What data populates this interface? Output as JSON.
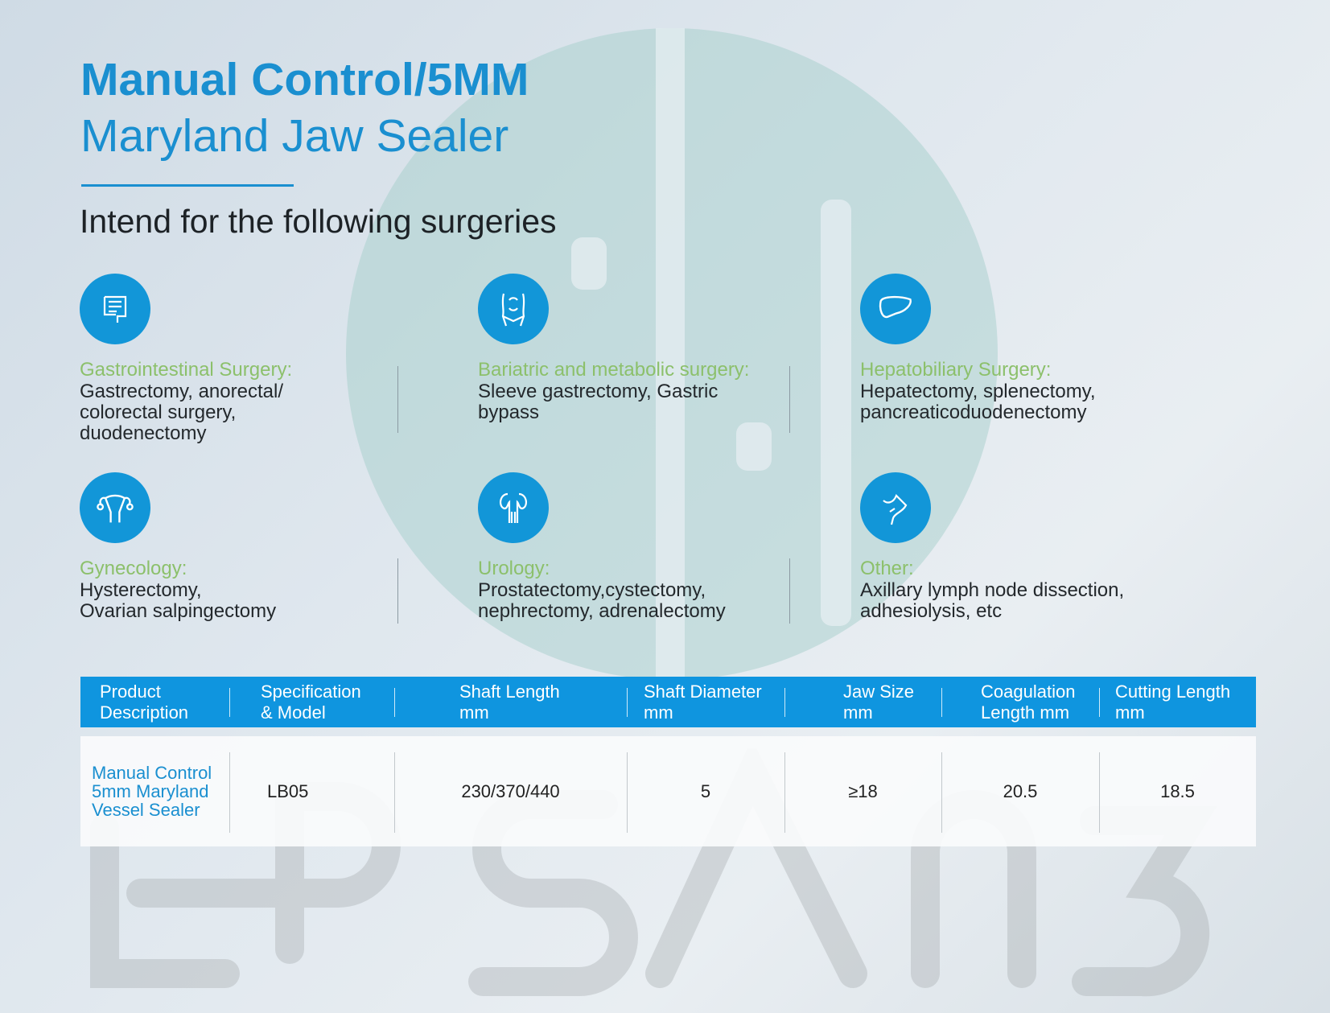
{
  "title": {
    "line1": "Manual Control/5MM",
    "line2": "Maryland Jaw Sealer"
  },
  "subtitle": "Intend for the following surgeries",
  "colors": {
    "accent": "#1a8fd0",
    "icon_bg": "#1296d8",
    "category_green": "#8cc06b",
    "table_header": "#0f95df"
  },
  "categories": [
    {
      "icon": "intestine-icon",
      "heading": "Gastrointestinal Surgery:",
      "desc": "Gastrectomy, anorectal/\ncolorectal surgery,\nduodenectomy"
    },
    {
      "icon": "abdomen-icon",
      "heading": "Bariatric and metabolic surgery:",
      "desc": "Sleeve gastrectomy, Gastric\nbypass"
    },
    {
      "icon": "liver-icon",
      "heading": "Hepatobiliary Surgery:",
      "desc": "Hepatectomy, splenectomy,\npancreaticoduodenectomy"
    },
    {
      "icon": "uterus-icon",
      "heading": "Gynecology:",
      "desc": "Hysterectomy,\nOvarian salpingectomy"
    },
    {
      "icon": "kidney-icon",
      "heading": "Urology:",
      "desc": "Prostatectomy,cystectomy,\nnephrectomy, adrenalectomy"
    },
    {
      "icon": "armpit-icon",
      "heading": "Other:",
      "desc": "Axillary lymph node dissection,\nadhesiolysis, etc"
    }
  ],
  "table": {
    "headers": [
      "Product\n Description",
      "Specification\n& Model",
      "Shaft Length\nmm",
      "Shaft Diameter\nmm",
      "Jaw Size\nmm",
      "Coagulation\nLength mm",
      "Cutting Length\nmm"
    ],
    "rows": [
      [
        "Manual Control\n5mm Maryland\nVessel Sealer",
        "LB05",
        "230/370/440",
        "5",
        "≥18",
        "20.5",
        "18.5"
      ]
    ]
  }
}
